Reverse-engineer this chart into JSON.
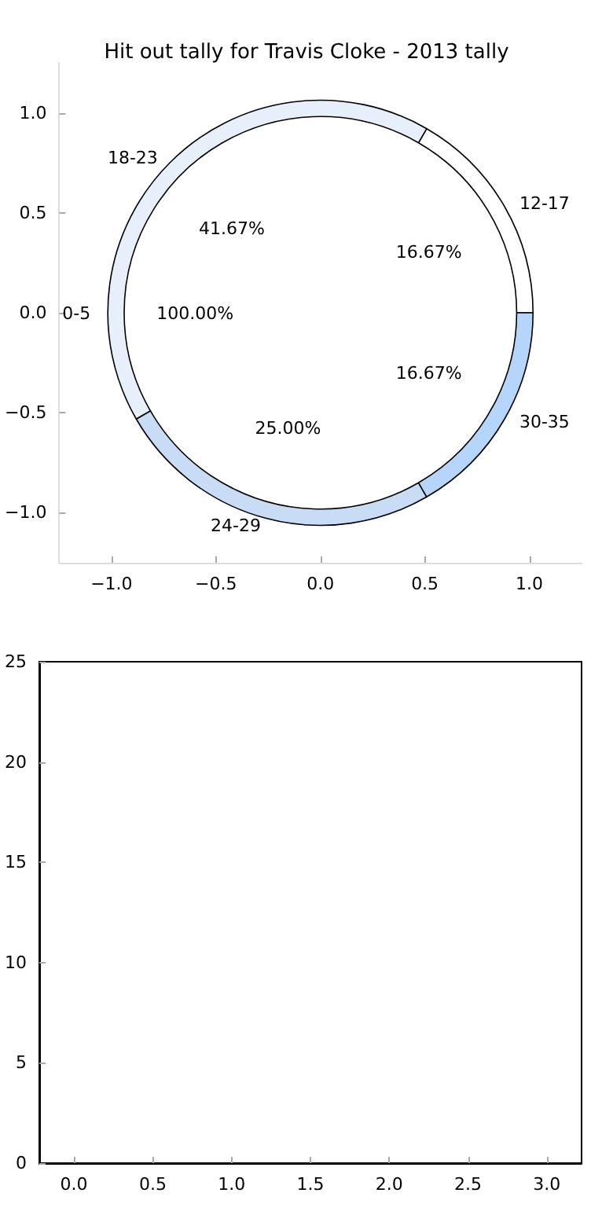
{
  "chart_data": [
    {
      "type": "scatter",
      "title": "Hit out tally for Travis Cloke - 2013 tally",
      "xlim": [
        -1.25,
        1.25
      ],
      "ylim": [
        -1.25,
        1.25
      ],
      "xticks": [
        {
          "value": -1,
          "label": "−1.0"
        },
        {
          "value": -0.5,
          "label": "−0.5"
        },
        {
          "value": 0,
          "label": "0.0"
        },
        {
          "value": 0.5,
          "label": "0.5"
        },
        {
          "value": 1,
          "label": "1.0"
        }
      ],
      "yticks": [
        {
          "value": -1,
          "label": "−1.0"
        },
        {
          "value": -0.5,
          "label": "−0.5"
        },
        {
          "value": 0,
          "label": "0.0"
        },
        {
          "value": 0.5,
          "label": "0.5"
        },
        {
          "value": 1,
          "label": "1.0"
        }
      ]
    },
    {
      "type": "pie",
      "categories": [
        "12-17",
        "18-23",
        "24-29",
        "30-35"
      ],
      "values": [
        16.67,
        41.67,
        25,
        16.67
      ],
      "colors": [
        "#ffffff",
        "#e6effa",
        "#c8dcf5",
        "#b5d5fb"
      ],
      "value_labels": [
        "16.67%",
        "41.67%",
        "25.00%",
        "16.67%"
      ]
    },
    {
      "type": "pie",
      "categories": [
        "0-5"
      ],
      "values": [
        100
      ],
      "colors": [
        "#ffffff"
      ],
      "value_labels": [
        "100.00%"
      ]
    },
    {
      "type": "bar",
      "xlim": [
        -0.22,
        3.22
      ],
      "ylim": [
        0,
        25
      ],
      "xticks": [
        {
          "value": 0,
          "label": "0.0"
        },
        {
          "value": 0.5,
          "label": "0.5"
        },
        {
          "value": 1,
          "label": "1.0"
        },
        {
          "value": 1.5,
          "label": "1.5"
        },
        {
          "value": 2,
          "label": "2.0"
        },
        {
          "value": 2.5,
          "label": "2.5"
        },
        {
          "value": 3,
          "label": "3.0"
        }
      ],
      "yticks": [
        0,
        5,
        10,
        15,
        20,
        25
      ]
    }
  ]
}
